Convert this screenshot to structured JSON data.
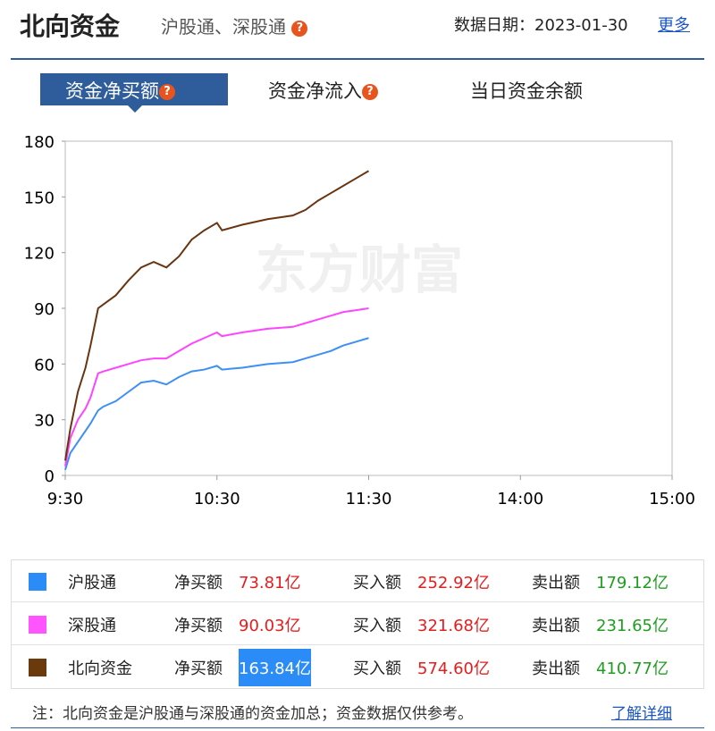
{
  "header": {
    "title": "北向资金",
    "subtitle": "沪股通、深股通",
    "help": "?",
    "date": "数据日期：2023-01-30",
    "more": "更多"
  },
  "tabs": [
    {
      "label": "资金净买额",
      "help": "?"
    },
    {
      "label": "资金净流入",
      "help": "?"
    },
    {
      "label": "当日资金余额"
    }
  ],
  "chart_data": {
    "type": "line",
    "watermark": "东方财富",
    "x": [
      0,
      2,
      5,
      8,
      10,
      13,
      15,
      20,
      25,
      30,
      35,
      40,
      45,
      50,
      55,
      60,
      62,
      70,
      80,
      90,
      95,
      100,
      105,
      110,
      115,
      120
    ],
    "xlim": [
      0,
      240
    ],
    "xticks": [
      {
        "value": 0,
        "label": "9:30"
      },
      {
        "value": 60,
        "label": "10:30"
      },
      {
        "value": 120,
        "label": "11:30"
      },
      {
        "value": 180,
        "label": "14:00"
      },
      {
        "value": 240,
        "label": "15:00"
      }
    ],
    "ylim": [
      0,
      180
    ],
    "yticks": [
      0,
      30,
      60,
      90,
      120,
      150,
      180
    ],
    "series": [
      {
        "name": "沪股通",
        "color": "#3d8ff5",
        "values": [
          3,
          12,
          18,
          24,
          28,
          35,
          37,
          40,
          45,
          50,
          51,
          49,
          53,
          56,
          57,
          59,
          57,
          58,
          60,
          61,
          63,
          65,
          67,
          70,
          72,
          74
        ]
      },
      {
        "name": "深股通",
        "color": "#ff44ff",
        "values": [
          5,
          20,
          30,
          36,
          42,
          55,
          56,
          58,
          60,
          62,
          63,
          63,
          67,
          71,
          74,
          77,
          75,
          77,
          79,
          80,
          82,
          84,
          86,
          88,
          89,
          90
        ]
      },
      {
        "name": "北向资金",
        "color": "#6b3410",
        "values": [
          8,
          25,
          45,
          58,
          70,
          90,
          92,
          97,
          105,
          112,
          115,
          112,
          118,
          127,
          132,
          136,
          132,
          135,
          138,
          140,
          143,
          148,
          152,
          156,
          160,
          164
        ]
      }
    ]
  },
  "table": {
    "rows": [
      {
        "name": "沪股通",
        "color": "#2b8cf7",
        "items": [
          {
            "label": "净买额",
            "value": "73.81亿"
          },
          {
            "label": "买入额",
            "value": "252.92亿"
          },
          {
            "label": "卖出额",
            "value": "179.12亿"
          }
        ]
      },
      {
        "name": "深股通",
        "color": "#ff55ff",
        "items": [
          {
            "label": "净买额",
            "value": "90.03亿"
          },
          {
            "label": "买入额",
            "value": "321.68亿"
          },
          {
            "label": "卖出额",
            "value": "231.65亿"
          }
        ]
      },
      {
        "name": "北向资金",
        "color": "#6b3a0c",
        "items": [
          {
            "label": "净买额",
            "value": "163.84亿"
          },
          {
            "label": "买入额",
            "value": "574.60亿"
          },
          {
            "label": "卖出额",
            "value": "410.77亿"
          }
        ]
      }
    ]
  },
  "note": {
    "text": "注：北向资金是沪股通与深股通的资金加总；资金数据仅供参考。",
    "link": "了解详细"
  }
}
